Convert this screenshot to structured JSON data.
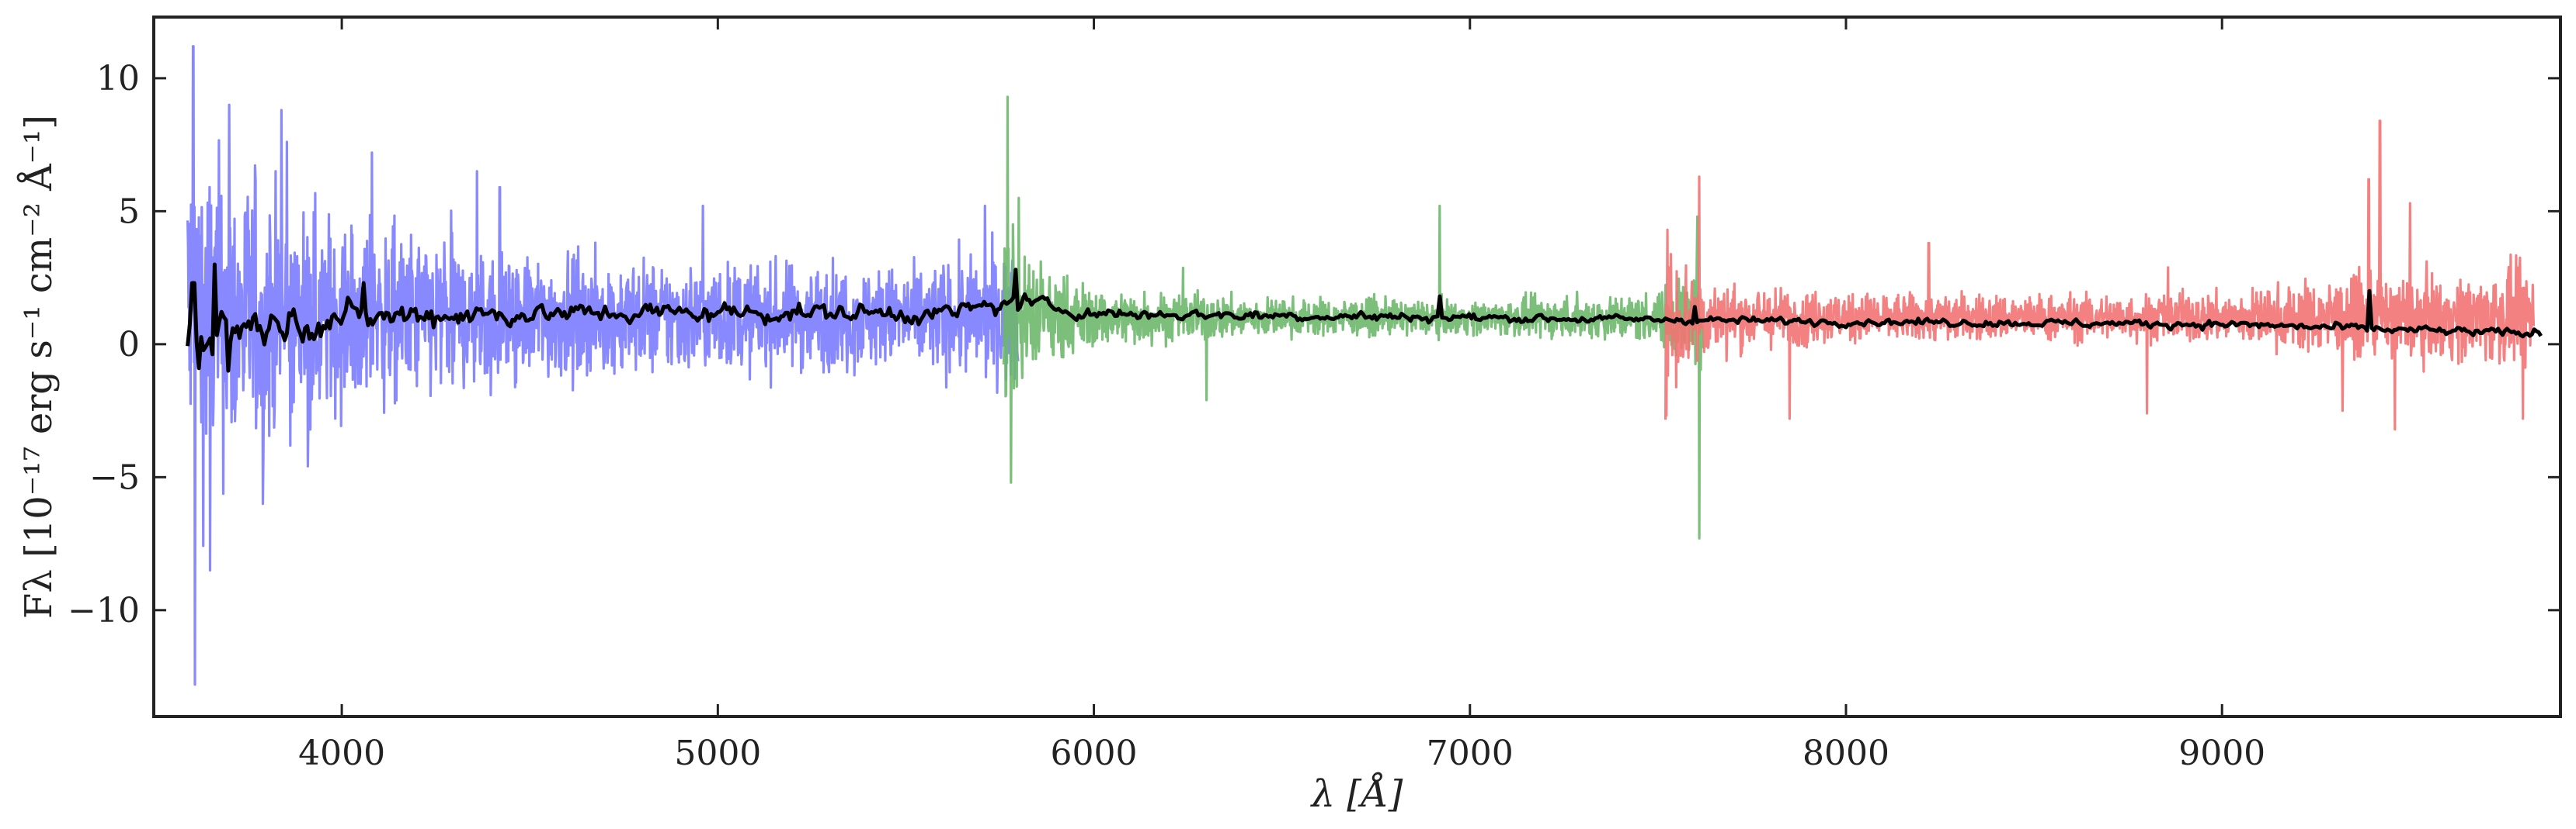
{
  "chart_data": {
    "type": "line",
    "title": "",
    "xlabel": "λ [Å]",
    "ylabel": "Fλ [10⁻¹⁷ erg s⁻¹ cm⁻² Å⁻¹]",
    "xlim": [
      3500,
      9900
    ],
    "ylim": [
      -14,
      12.3
    ],
    "x_ticks": [
      4000,
      5000,
      6000,
      7000,
      8000,
      9000
    ],
    "y_ticks": [
      -10,
      -5,
      0,
      5,
      10
    ],
    "y_tick_labels": [
      "−10",
      "−5",
      "0",
      "5",
      "10"
    ],
    "grid": false,
    "legend": "none",
    "series": [
      {
        "color": "#7b7bff",
        "x_range": [
          3590,
          5800
        ],
        "noise_knots": [
          [
            3590,
            4.8
          ],
          [
            3700,
            3.6
          ],
          [
            3900,
            2.6
          ],
          [
            4200,
            2.0
          ],
          [
            4500,
            1.5
          ],
          [
            5000,
            1.3
          ],
          [
            5500,
            1.2
          ],
          [
            5800,
            1.6
          ]
        ],
        "spikes": [
          [
            3605,
            11.2
          ],
          [
            3610,
            -12.8
          ],
          [
            3650,
            -8.5
          ],
          [
            3700,
            9.0
          ],
          [
            3790,
            -6.0
          ],
          [
            3840,
            8.8
          ],
          [
            4080,
            7.2
          ],
          [
            4360,
            6.5
          ],
          [
            4420,
            5.9
          ],
          [
            4960,
            5.2
          ],
          [
            5710,
            5.2
          ]
        ]
      },
      {
        "color": "#6db86d",
        "x_range": [
          5760,
          7620
        ],
        "noise_knots": [
          [
            5760,
            2.4
          ],
          [
            5830,
            1.4
          ],
          [
            6000,
            0.7
          ],
          [
            6500,
            0.45
          ],
          [
            7000,
            0.4
          ],
          [
            7500,
            0.6
          ],
          [
            7620,
            1.6
          ]
        ],
        "spikes": [
          [
            5770,
            9.3
          ],
          [
            5780,
            -5.2
          ],
          [
            5800,
            5.5
          ],
          [
            6300,
            -2.1
          ],
          [
            6920,
            5.2
          ],
          [
            7610,
            -7.3
          ],
          [
            7605,
            4.8
          ]
        ]
      },
      {
        "color": "#f27373",
        "x_range": [
          7520,
          9830
        ],
        "noise_knots": [
          [
            7520,
            2.0
          ],
          [
            7650,
            0.8
          ],
          [
            8000,
            0.6
          ],
          [
            8500,
            0.55
          ],
          [
            9000,
            0.6
          ],
          [
            9300,
            0.9
          ],
          [
            9600,
            1.0
          ],
          [
            9830,
            1.2
          ]
        ],
        "spikes": [
          [
            7610,
            6.3
          ],
          [
            7850,
            -2.8
          ],
          [
            8220,
            3.8
          ],
          [
            8800,
            -2.6
          ],
          [
            9320,
            -2.5
          ],
          [
            9390,
            6.2
          ],
          [
            9420,
            8.4
          ],
          [
            9460,
            -3.2
          ],
          [
            9500,
            5.3
          ],
          [
            9800,
            -2.8
          ]
        ]
      },
      {
        "color": "#000000",
        "x_range": [
          3590,
          9850
        ],
        "mean_knots": [
          [
            3590,
            0.5
          ],
          [
            3800,
            0.8
          ],
          [
            4200,
            1.1
          ],
          [
            5000,
            1.2
          ],
          [
            5600,
            1.15
          ],
          [
            5800,
            1.6
          ],
          [
            6000,
            1.15
          ],
          [
            7000,
            1.0
          ],
          [
            8000,
            0.85
          ],
          [
            9000,
            0.75
          ],
          [
            9800,
            0.4
          ]
        ],
        "wiggle_knots": [
          [
            3590,
            0.9
          ],
          [
            3800,
            0.6
          ],
          [
            4500,
            0.35
          ],
          [
            5800,
            0.3
          ],
          [
            6000,
            0.2
          ],
          [
            7500,
            0.12
          ],
          [
            9800,
            0.15
          ]
        ],
        "spikes": [
          [
            3605,
            2.3
          ],
          [
            3620,
            -0.9
          ],
          [
            3660,
            3.0
          ],
          [
            3700,
            -1.0
          ],
          [
            4060,
            2.3
          ],
          [
            5790,
            2.8
          ],
          [
            6920,
            1.8
          ],
          [
            7600,
            1.4
          ],
          [
            9390,
            2.0
          ]
        ]
      }
    ]
  }
}
